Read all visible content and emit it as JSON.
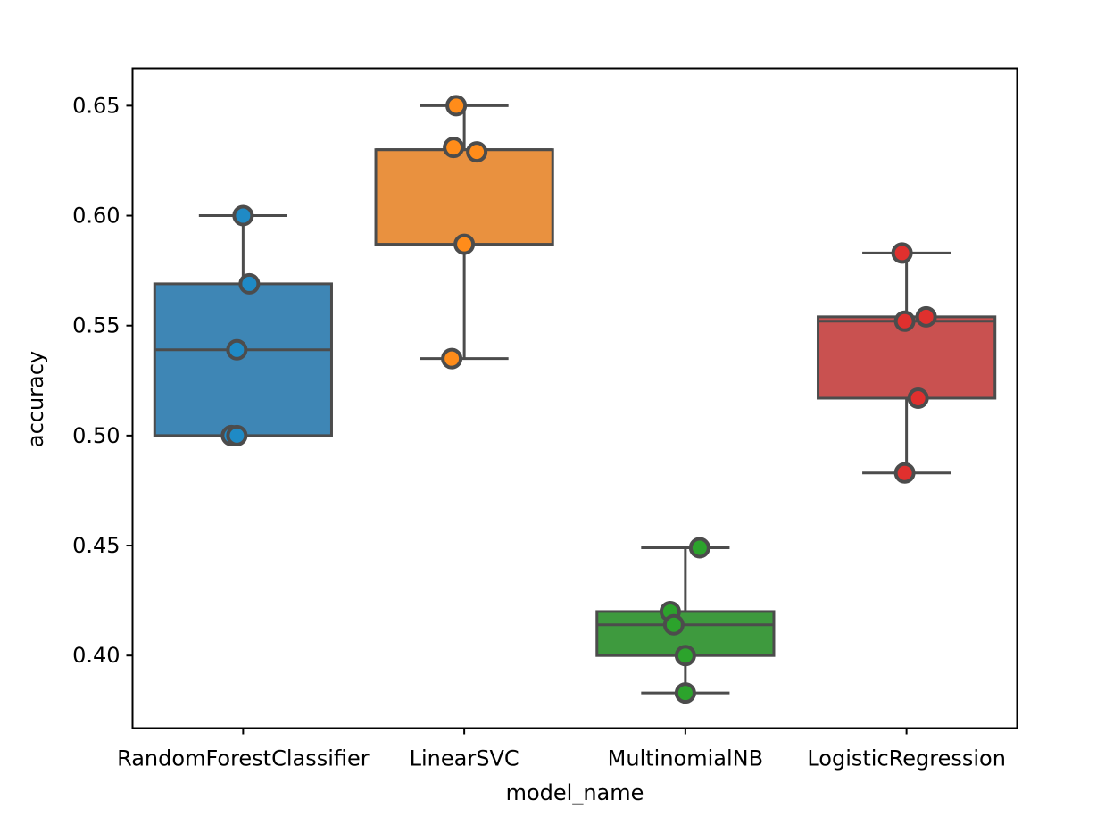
{
  "chart_data": {
    "type": "box",
    "title": "",
    "xlabel": "model_name",
    "ylabel": "accuracy",
    "ylim": [
      0.367,
      0.667
    ],
    "yticks": [
      "0.40",
      "0.45",
      "0.50",
      "0.55",
      "0.60",
      "0.65"
    ],
    "grid": false,
    "categories": [
      "RandomForestClassifier",
      "LinearSVC",
      "MultinomialNB",
      "LogisticRegression"
    ],
    "boxes": [
      {
        "min": 0.5,
        "q1": 0.5,
        "median": 0.539,
        "q3": 0.569,
        "max": 0.6
      },
      {
        "min": 0.535,
        "q1": 0.587,
        "median": 0.63,
        "q3": 0.63,
        "max": 0.65
      },
      {
        "min": 0.383,
        "q1": 0.4,
        "median": 0.414,
        "q3": 0.42,
        "max": 0.449
      },
      {
        "min": 0.483,
        "q1": 0.517,
        "median": 0.552,
        "q3": 0.554,
        "max": 0.583
      }
    ],
    "points": [
      {
        "category": "RandomForestClassifier",
        "values": [
          0.6,
          0.569,
          0.539,
          0.5,
          0.5
        ]
      },
      {
        "category": "LinearSVC",
        "values": [
          0.65,
          0.631,
          0.629,
          0.587,
          0.535
        ]
      },
      {
        "category": "MultinomialNB",
        "values": [
          0.449,
          0.42,
          0.414,
          0.4,
          0.383
        ]
      },
      {
        "category": "LogisticRegression",
        "values": [
          0.583,
          0.554,
          0.552,
          0.517,
          0.483
        ]
      }
    ],
    "colors": {
      "box_fill": [
        "#3e86b5",
        "#e9913f",
        "#3e9a3e",
        "#c95150"
      ],
      "point_fill": [
        "#1f8ac5",
        "#ff8c1a",
        "#2ca32c",
        "#e0302e"
      ],
      "edge": "#4c4c4c"
    }
  }
}
